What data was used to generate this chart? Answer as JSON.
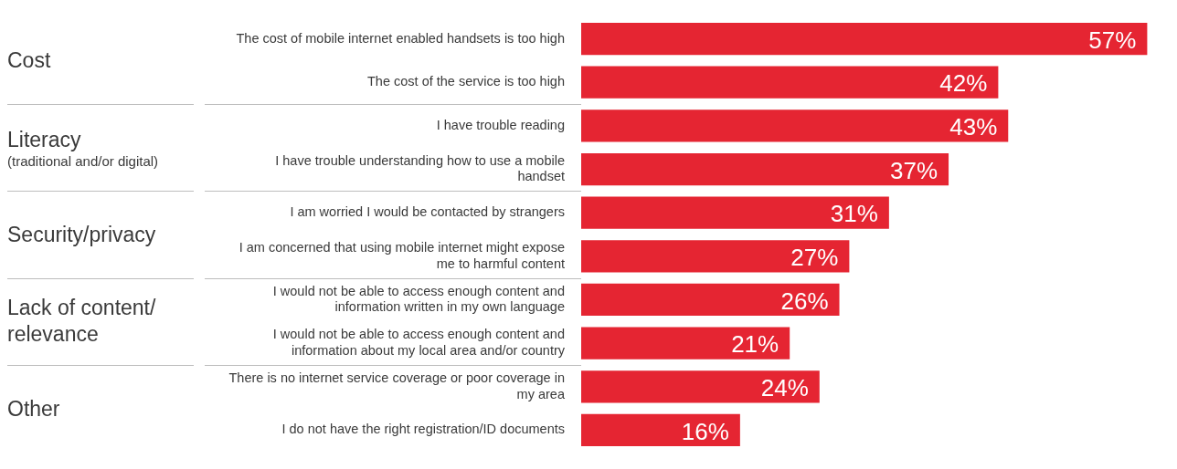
{
  "chart_data": {
    "type": "bar",
    "orientation": "horizontal",
    "categories": [
      "The cost of mobile internet enabled handsets is too high",
      "The cost of the service is too high",
      "I have trouble reading",
      "I have trouble understanding how to use a mobile handset",
      "I am worried I would be contacted by strangers",
      "I am concerned that using mobile internet might expose me to harmful content",
      "I would not be able to access enough content and information written in my own language",
      "I would not be able to access enough content and information about my local area and/or country",
      "There is no internet service coverage or poor coverage in my area",
      "I do not have the right registration/ID documents"
    ],
    "values": [
      57,
      42,
      43,
      37,
      31,
      27,
      26,
      21,
      24,
      16
    ],
    "color": "#e52532",
    "value_labels": [
      "57%",
      "42%",
      "43%",
      "37%",
      "31%",
      "27%",
      "26%",
      "21%",
      "24%",
      "16%"
    ],
    "annotations": [
      "Cost",
      "Literacy\n(traditional and/or digital)",
      "Security/privacy",
      "Lack of content/ relevance",
      "Other"
    ],
    "grid": false,
    "legend": false
  }
}
